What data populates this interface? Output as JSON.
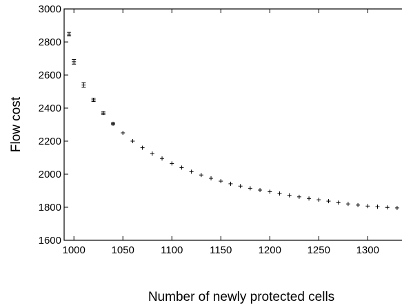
{
  "chart_data": {
    "type": "scatter",
    "title": "",
    "xlabel": "Number of newly protected cells",
    "ylabel": "Flow cost",
    "xlim": [
      990,
      1335
    ],
    "ylim": [
      1600,
      3000
    ],
    "xticks": [
      1000,
      1050,
      1100,
      1150,
      1200,
      1250,
      1300
    ],
    "yticks": [
      1600,
      1800,
      2000,
      2200,
      2400,
      2600,
      2800,
      3000
    ],
    "grid": false,
    "series": [
      {
        "marker": "plus-with-error-bars",
        "x": [
          995,
          1000,
          1010,
          1020,
          1030,
          1040,
          1050,
          1060,
          1070,
          1080,
          1090,
          1100,
          1110,
          1120,
          1130,
          1140,
          1150,
          1160,
          1170,
          1180,
          1190,
          1200,
          1210,
          1220,
          1230,
          1240,
          1250,
          1260,
          1270,
          1280,
          1290,
          1300,
          1310,
          1320,
          1330
        ],
        "y": [
          2848,
          2680,
          2540,
          2450,
          2370,
          2305,
          2250,
          2200,
          2160,
          2125,
          2095,
          2065,
          2040,
          2015,
          1995,
          1975,
          1958,
          1942,
          1928,
          1915,
          1904,
          1894,
          1883,
          1872,
          1863,
          1853,
          1845,
          1837,
          1828,
          1820,
          1813,
          1807,
          1803,
          1799,
          1796
        ],
        "error": [
          10,
          14,
          14,
          10,
          8,
          6,
          5,
          5,
          4,
          4,
          4,
          4,
          4,
          4,
          4,
          4,
          4,
          4,
          4,
          4,
          4,
          4,
          4,
          4,
          4,
          4,
          4,
          4,
          4,
          4,
          4,
          4,
          4,
          4,
          4
        ]
      }
    ]
  }
}
